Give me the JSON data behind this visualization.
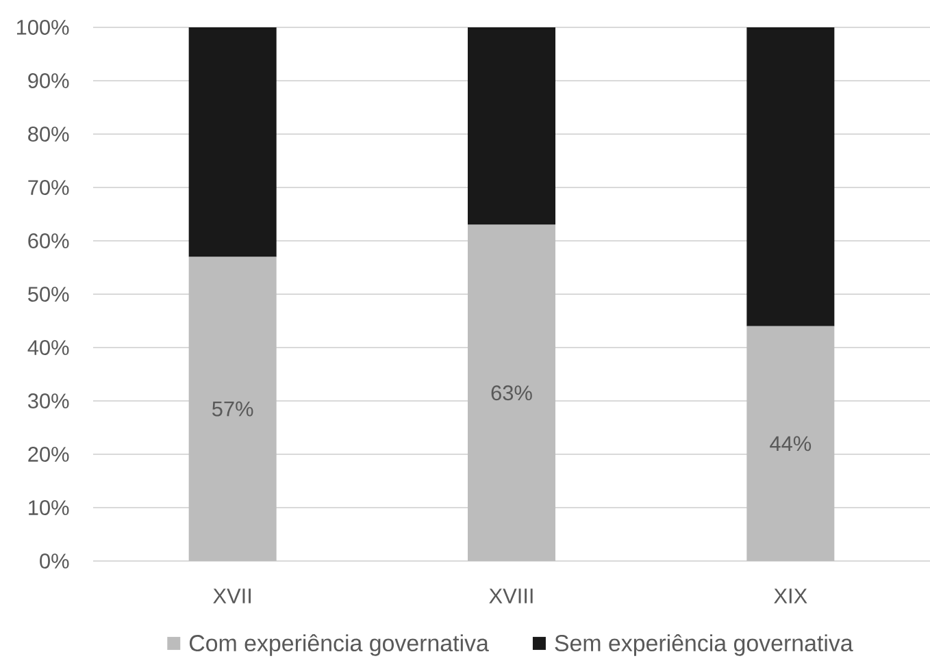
{
  "chart_data": {
    "type": "bar",
    "stacked": true,
    "categories": [
      "XVII",
      "XVIII",
      "XIX"
    ],
    "series": [
      {
        "name": "Com experiência governativa",
        "color": "#bcbcbc",
        "values": [
          57,
          63,
          44
        ],
        "value_labels": [
          "57%",
          "63%",
          "44%"
        ]
      },
      {
        "name": "Sem experiência governativa",
        "color": "#191919",
        "values": [
          43,
          37,
          56
        ]
      }
    ],
    "ylim": [
      0,
      100
    ],
    "yticks": [
      {
        "value": 0,
        "label": "0%"
      },
      {
        "value": 10,
        "label": "10%"
      },
      {
        "value": 20,
        "label": "20%"
      },
      {
        "value": 30,
        "label": "30%"
      },
      {
        "value": 40,
        "label": "40%"
      },
      {
        "value": 50,
        "label": "50%"
      },
      {
        "value": 60,
        "label": "60%"
      },
      {
        "value": 70,
        "label": "70%"
      },
      {
        "value": 80,
        "label": "80%"
      },
      {
        "value": 90,
        "label": "90%"
      },
      {
        "value": 100,
        "label": "100%"
      }
    ],
    "grid": "y",
    "legend": "bottom"
  }
}
